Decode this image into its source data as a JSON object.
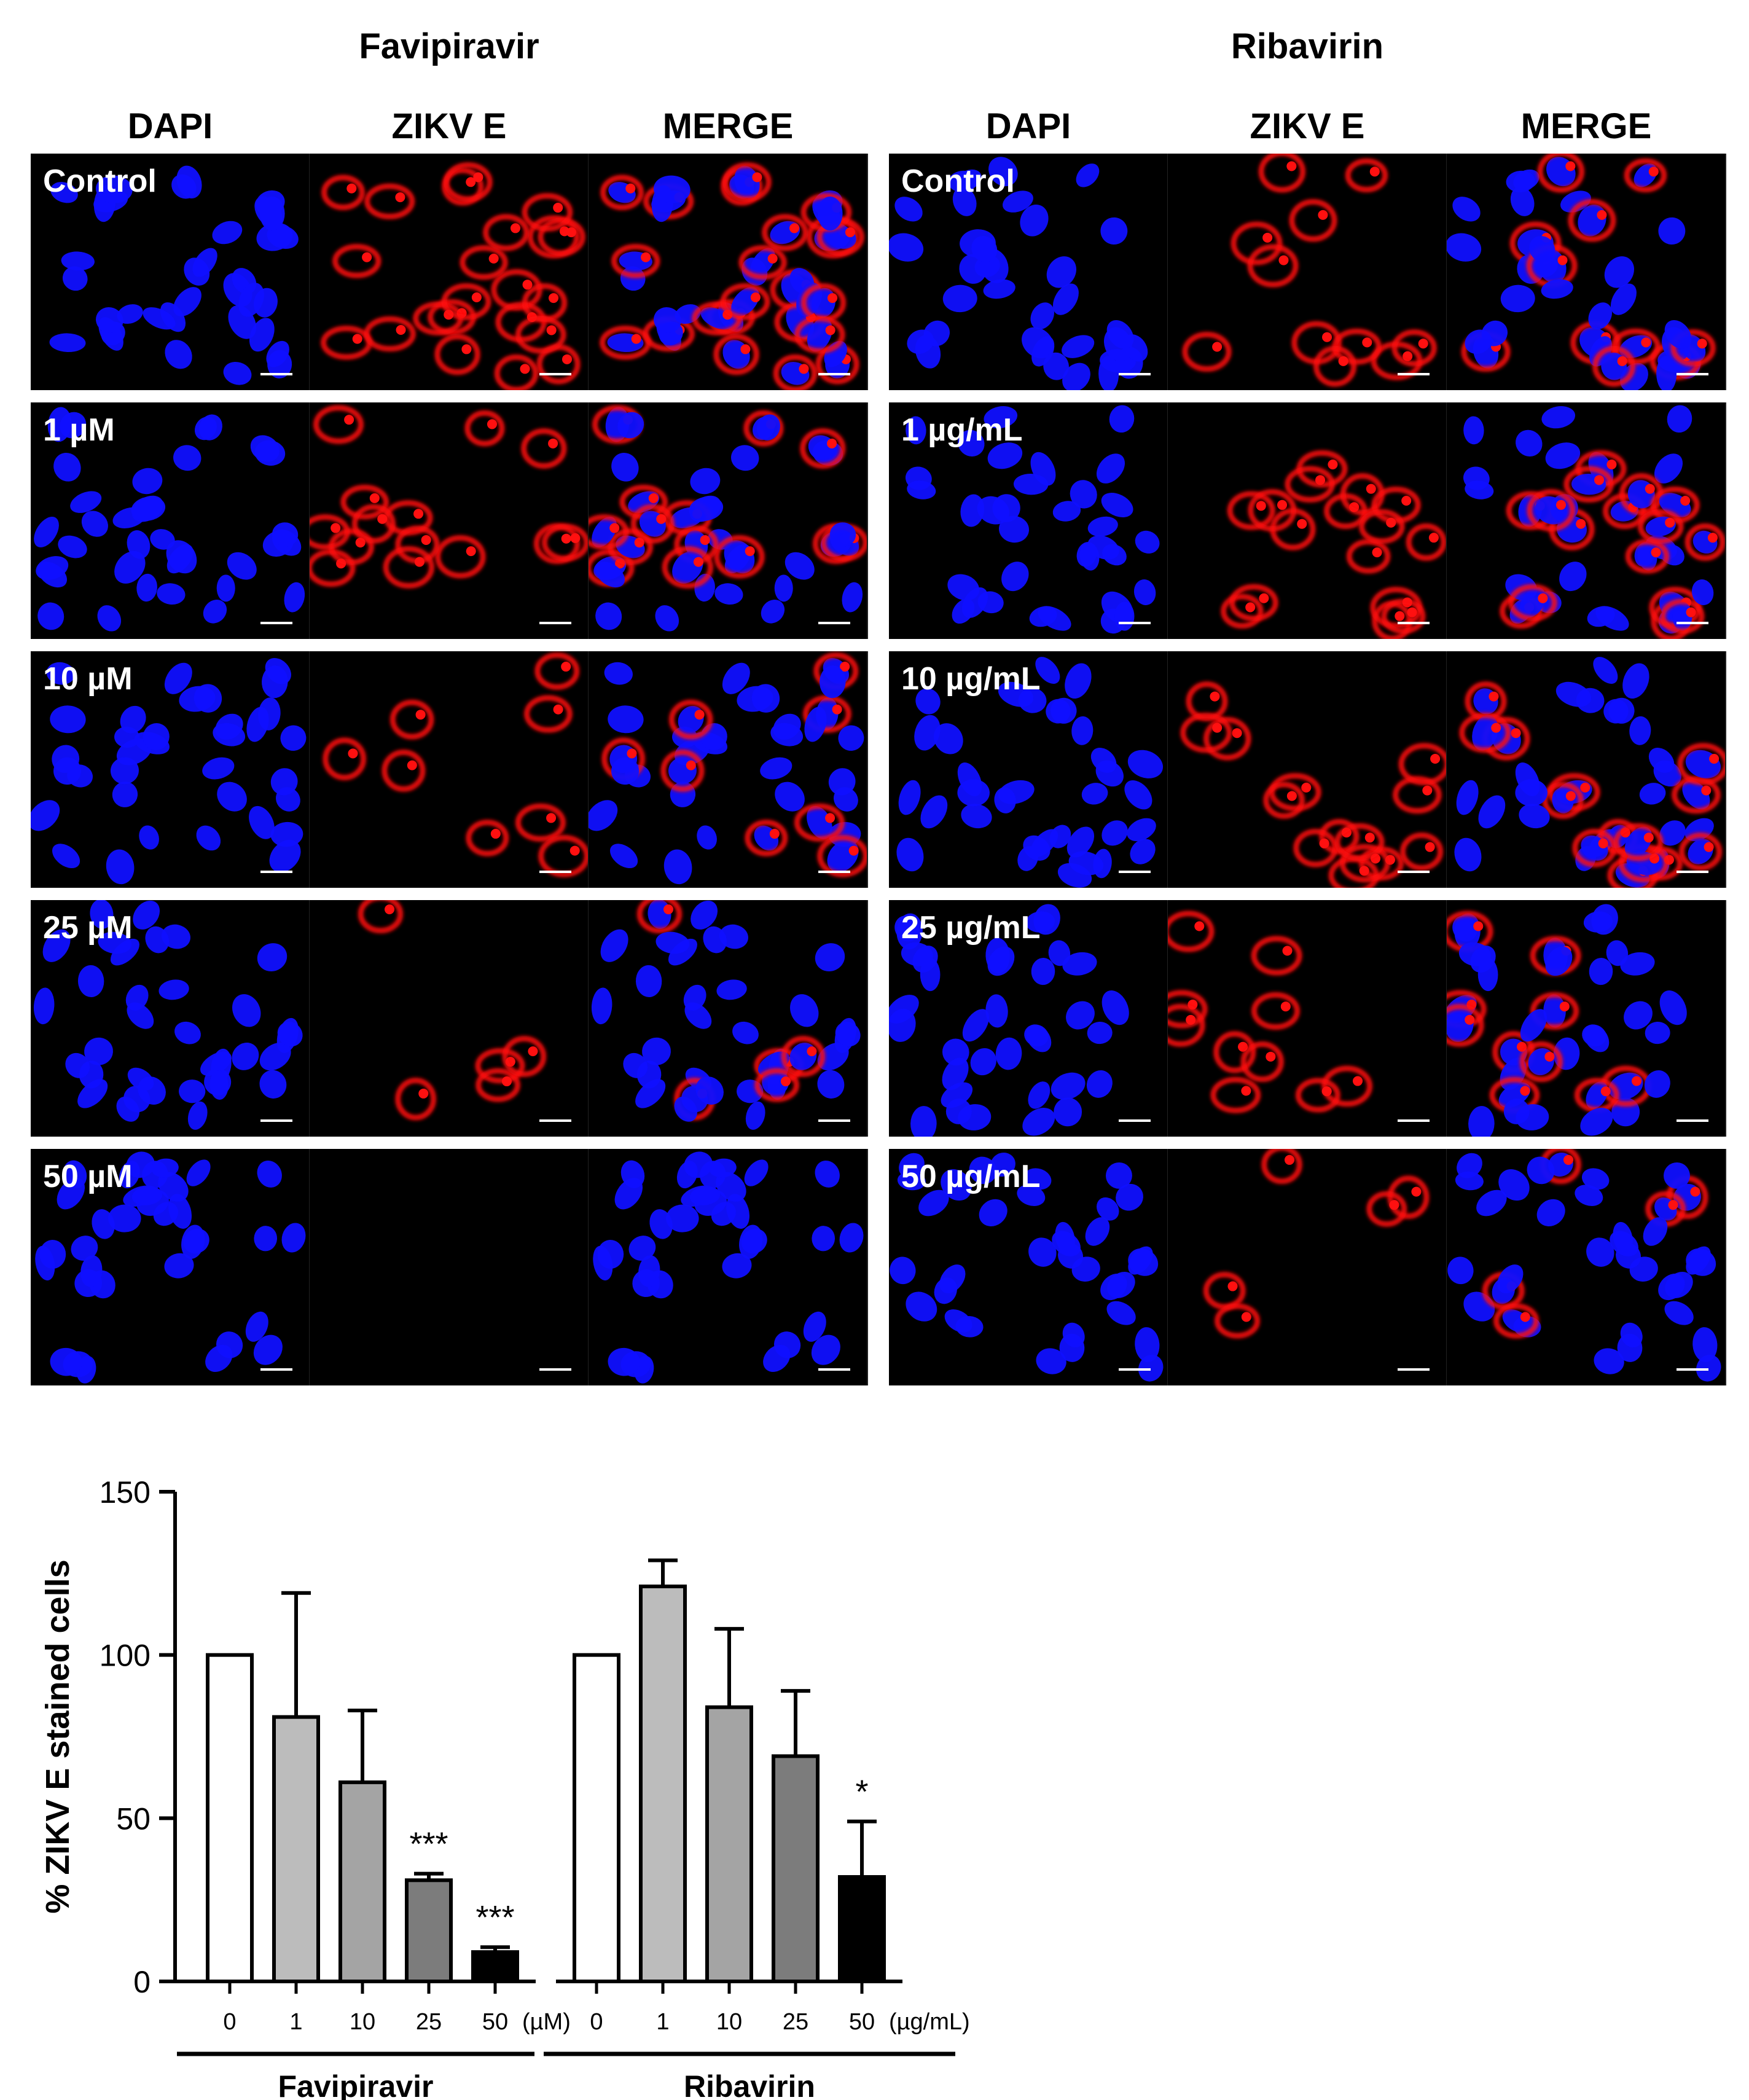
{
  "figure": {
    "drugs": [
      {
        "name": "Favipiravir",
        "columns": [
          "DAPI",
          "ZIKV  E",
          "MERGE"
        ],
        "rows": [
          "Control",
          "1 µM",
          "10 µM",
          "25 µM",
          "50 µM"
        ]
      },
      {
        "name": "Ribavirin",
        "columns": [
          "DAPI",
          "ZIKV  E",
          "MERGE"
        ],
        "rows": [
          "Control",
          "1 µg/mL",
          "10 µg/mL",
          "25 µg/mL",
          "50 µg/mL"
        ]
      }
    ],
    "red_levels": {
      "Favipiravir": [
        1.0,
        0.8,
        0.6,
        0.3,
        0.1
      ],
      "Ribavirin": [
        1.0,
        1.0,
        0.85,
        0.7,
        0.35
      ]
    },
    "colors": {
      "nucleus": "#1010ff",
      "zikv": "#ff1010",
      "background": "#000000"
    }
  },
  "chart_data": {
    "type": "bar",
    "ylabel": "% ZIKV E stained cells",
    "ylim": [
      0,
      150
    ],
    "yticks": [
      0,
      50,
      100,
      150
    ],
    "groups": [
      {
        "name": "Favipiravir",
        "unit": "(µM)",
        "categories": [
          "0",
          "1",
          "10",
          "25",
          "50"
        ],
        "values": [
          100,
          81,
          61,
          31,
          9
        ],
        "errors": [
          0,
          38,
          22,
          2,
          1.5
        ],
        "significance": [
          "",
          "",
          "",
          "***",
          "***"
        ],
        "colors": [
          "#ffffff",
          "#bcbcbc",
          "#a4a4a4",
          "#7c7c7c",
          "#000000"
        ]
      },
      {
        "name": "Ribavirin",
        "unit": "(µg/mL)",
        "categories": [
          "0",
          "1",
          "10",
          "25",
          "50"
        ],
        "values": [
          100,
          121,
          84,
          69,
          32
        ],
        "errors": [
          0,
          8,
          24,
          20,
          17
        ],
        "significance": [
          "",
          "",
          "",
          "",
          "*"
        ],
        "colors": [
          "#ffffff",
          "#bcbcbc",
          "#a4a4a4",
          "#7c7c7c",
          "#000000"
        ]
      }
    ]
  }
}
